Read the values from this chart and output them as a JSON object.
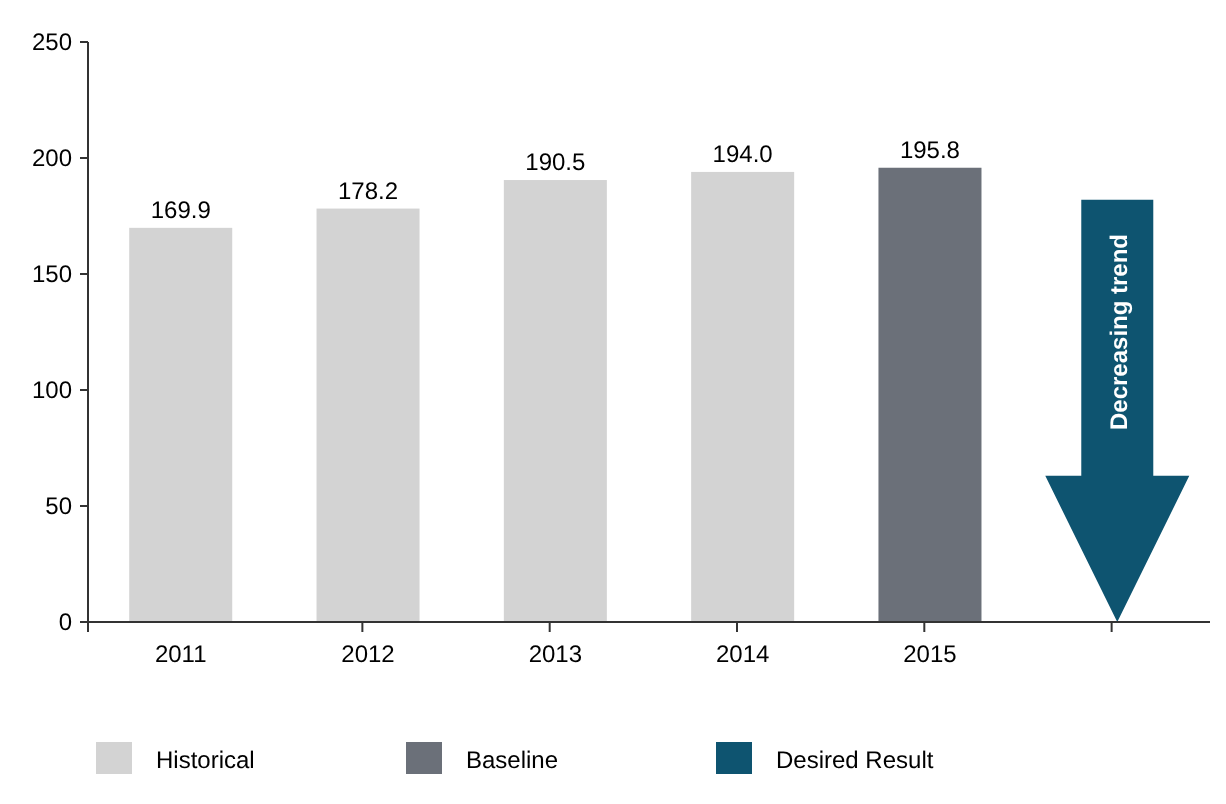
{
  "chart_data": {
    "type": "bar",
    "categories": [
      "2011",
      "2012",
      "2013",
      "2014",
      "2015",
      null
    ],
    "series": [
      {
        "name": "Historical",
        "color": "#d3d3d3",
        "values": [
          169.9,
          178.2,
          190.5,
          194.0,
          null,
          null
        ],
        "value_labels": [
          "169.9",
          "178.2",
          "190.5",
          "194.0",
          null,
          null
        ]
      },
      {
        "name": "Baseline",
        "color": "#6b7079",
        "values": [
          null,
          null,
          null,
          null,
          195.8,
          null
        ],
        "value_labels": [
          null,
          null,
          null,
          null,
          "195.8",
          null
        ]
      },
      {
        "name": "Desired Result",
        "color": "#0e5470",
        "values": [
          null,
          null,
          null,
          null,
          null,
          null
        ]
      }
    ],
    "ylim": [
      0,
      250
    ],
    "yticks": [
      0,
      50,
      100,
      150,
      200,
      250
    ],
    "grid": false,
    "legend": "bottom",
    "annotations": [
      {
        "text": "Decreasing trend"
      }
    ]
  }
}
